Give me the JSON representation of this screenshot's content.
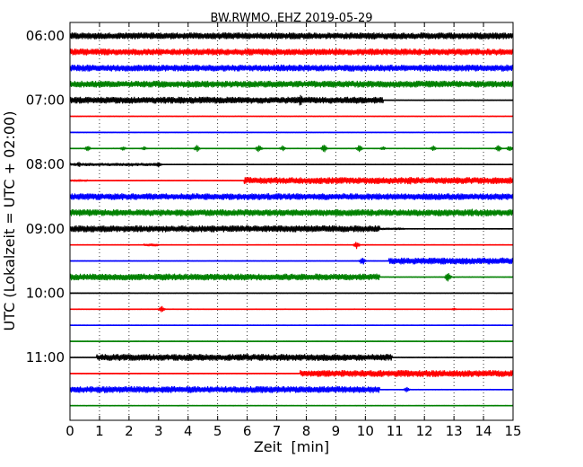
{
  "chart_data": {
    "type": "line",
    "title": "BW.RWMO..EHZ 2019-05-29",
    "xlabel": "Zeit  [min]",
    "ylabel": "UTC (Lokalzeit = UTC + 02:00)",
    "xlim": [
      0,
      15
    ],
    "x_ticks": [
      "0",
      "1",
      "2",
      "3",
      "4",
      "5",
      "6",
      "7",
      "8",
      "9",
      "10",
      "11",
      "12",
      "13",
      "14",
      "15"
    ],
    "y_tick_labels": [
      "06:00",
      "07:00",
      "08:00",
      "09:00",
      "10:00",
      "11:00"
    ],
    "grid": "vertical-dotted",
    "trace_colors": [
      "#000000",
      "#ff0000",
      "#0000ff",
      "#008000"
    ],
    "traces": [
      {
        "start": "06:00",
        "level": [
          [
            0,
            0.3,
            0.45
          ],
          [
            0.3,
            15,
            0.45
          ]
        ],
        "spikes": []
      },
      {
        "start": "06:15",
        "level": [
          [
            0,
            15,
            0.45
          ]
        ],
        "spikes": []
      },
      {
        "start": "06:30",
        "level": [
          [
            0,
            15,
            0.45
          ]
        ],
        "spikes": []
      },
      {
        "start": "06:45",
        "level": [
          [
            0,
            15,
            0.45
          ]
        ],
        "spikes": []
      },
      {
        "start": "07:00",
        "level": [
          [
            0,
            10.6,
            0.45
          ],
          [
            10.6,
            15,
            0.05
          ]
        ],
        "spikes": [
          [
            7.8,
            0.8
          ]
        ]
      },
      {
        "start": "07:15",
        "level": [
          [
            0,
            15,
            0.06
          ]
        ],
        "spikes": []
      },
      {
        "start": "07:30",
        "level": [
          [
            0,
            15,
            0.06
          ]
        ],
        "spikes": []
      },
      {
        "start": "07:45",
        "level": [
          [
            0,
            15,
            0.06
          ]
        ],
        "spikes": [
          [
            0.6,
            0.4
          ],
          [
            1.8,
            0.3
          ],
          [
            2.5,
            0.3
          ],
          [
            4.3,
            0.5
          ],
          [
            6.4,
            0.6
          ],
          [
            7.2,
            0.4
          ],
          [
            8.6,
            0.6
          ],
          [
            9.8,
            0.5
          ],
          [
            10.6,
            0.3
          ],
          [
            12.3,
            0.4
          ],
          [
            14.5,
            0.5
          ],
          [
            14.9,
            0.5
          ]
        ]
      },
      {
        "start": "08:00",
        "level": [
          [
            0,
            3.0,
            0.2
          ],
          [
            3.0,
            15,
            0.05
          ]
        ],
        "spikes": [
          [
            0.3,
            0.4
          ],
          [
            2.1,
            0.3
          ],
          [
            3.0,
            0.4
          ]
        ]
      },
      {
        "start": "08:15",
        "level": [
          [
            0,
            0.6,
            0.15
          ],
          [
            0.6,
            5.9,
            0.05
          ],
          [
            5.9,
            15,
            0.45
          ]
        ],
        "spikes": [
          [
            11.5,
            0.8
          ]
        ]
      },
      {
        "start": "08:30",
        "level": [
          [
            0,
            15,
            0.45
          ]
        ],
        "spikes": []
      },
      {
        "start": "08:45",
        "level": [
          [
            0,
            15,
            0.45
          ]
        ],
        "spikes": [
          [
            13.6,
            0.8
          ]
        ]
      },
      {
        "start": "09:00",
        "level": [
          [
            0,
            10.5,
            0.45
          ],
          [
            10.5,
            11.3,
            0.15
          ],
          [
            11.3,
            15,
            0.05
          ]
        ],
        "spikes": [
          [
            2.6,
            0.6
          ]
        ]
      },
      {
        "start": "09:15",
        "level": [
          [
            0,
            2.5,
            0.05
          ],
          [
            2.5,
            3.0,
            0.18
          ],
          [
            3.0,
            15,
            0.05
          ]
        ],
        "spikes": [
          [
            9.7,
            0.6
          ]
        ]
      },
      {
        "start": "09:30",
        "level": [
          [
            0,
            10.8,
            0.05
          ],
          [
            10.8,
            15,
            0.45
          ]
        ],
        "spikes": [
          [
            9.9,
            0.6
          ],
          [
            12.8,
            0.5
          ]
        ]
      },
      {
        "start": "09:45",
        "level": [
          [
            0,
            10.5,
            0.45
          ],
          [
            10.5,
            15,
            0.06
          ]
        ],
        "spikes": [
          [
            12.8,
            0.7
          ]
        ]
      },
      {
        "start": "10:00",
        "level": [
          [
            0,
            15,
            0.06
          ]
        ],
        "spikes": []
      },
      {
        "start": "10:15",
        "level": [
          [
            0,
            15,
            0.06
          ]
        ],
        "spikes": [
          [
            3.1,
            0.5
          ],
          [
            13.0,
            0.2
          ]
        ]
      },
      {
        "start": "10:30",
        "level": [
          [
            0,
            15,
            0.06
          ]
        ],
        "spikes": []
      },
      {
        "start": "10:45",
        "level": [
          [
            0,
            15,
            0.06
          ]
        ],
        "spikes": []
      },
      {
        "start": "11:00",
        "level": [
          [
            0,
            0.9,
            0.05
          ],
          [
            0.9,
            10.9,
            0.45
          ],
          [
            10.9,
            15,
            0.06
          ]
        ],
        "spikes": [
          [
            8.6,
            0.6
          ]
        ]
      },
      {
        "start": "11:15",
        "level": [
          [
            0,
            7.8,
            0.06
          ],
          [
            7.8,
            15,
            0.45
          ]
        ],
        "spikes": []
      },
      {
        "start": "11:30",
        "level": [
          [
            0,
            10.5,
            0.45
          ],
          [
            10.5,
            15,
            0.06
          ]
        ],
        "spikes": [
          [
            11.4,
            0.4
          ]
        ]
      },
      {
        "start": "11:45",
        "level": [
          [
            0,
            15,
            0.06
          ]
        ],
        "spikes": []
      }
    ]
  }
}
